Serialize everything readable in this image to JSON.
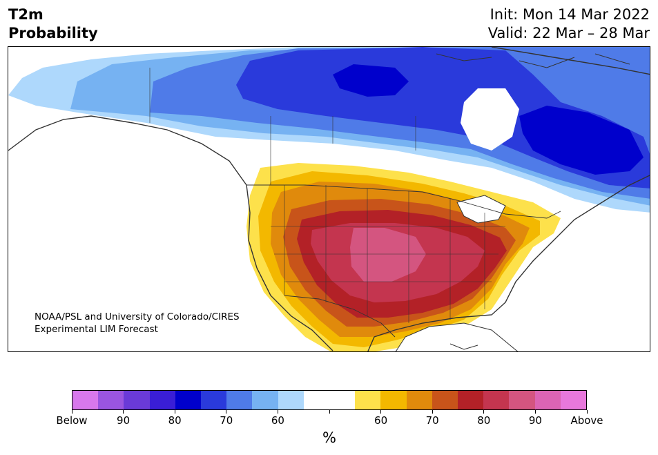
{
  "header": {
    "title_line1": "T2m",
    "title_line2": "Probability",
    "init": "Init: Mon 14 Mar 2022",
    "valid": "Valid: 22 Mar – 28 Mar"
  },
  "map": {
    "credit_line1": "NOAA/PSL and University of Colorado/CIRES",
    "credit_line2": "Experimental LIM Forecast",
    "colors": {
      "below60": "#aed8fc",
      "below70": "#76b2f2",
      "below80": "#4f7be8",
      "below90": "#2a3adb",
      "below_deep": "#0000cc",
      "above60": "#fde14b",
      "above70": "#f3b800",
      "above80": "#e08a0c",
      "above90": "#c8541a",
      "above_red": "#b32127",
      "above_crimson": "#c4354f",
      "above_pink": "#d45580",
      "land_line": "#333333",
      "water": "#ffffff"
    }
  },
  "colorbar": {
    "colors": [
      "#d878ec",
      "#9a55e0",
      "#6a3ad8",
      "#3a1ed6",
      "#0000cc",
      "#2a3adb",
      "#4f7be8",
      "#76b2f2",
      "#aed8fc",
      "#ffffff",
      "#ffffff",
      "#fde14b",
      "#f3b800",
      "#e08a0c",
      "#c8541a",
      "#b32127",
      "#c4354f",
      "#d45580",
      "#dc64b4",
      "#e878dc"
    ],
    "labels": [
      "Below",
      "90",
      "80",
      "70",
      "60",
      "",
      "60",
      "70",
      "80",
      "90",
      "Above"
    ],
    "unit": "%"
  }
}
